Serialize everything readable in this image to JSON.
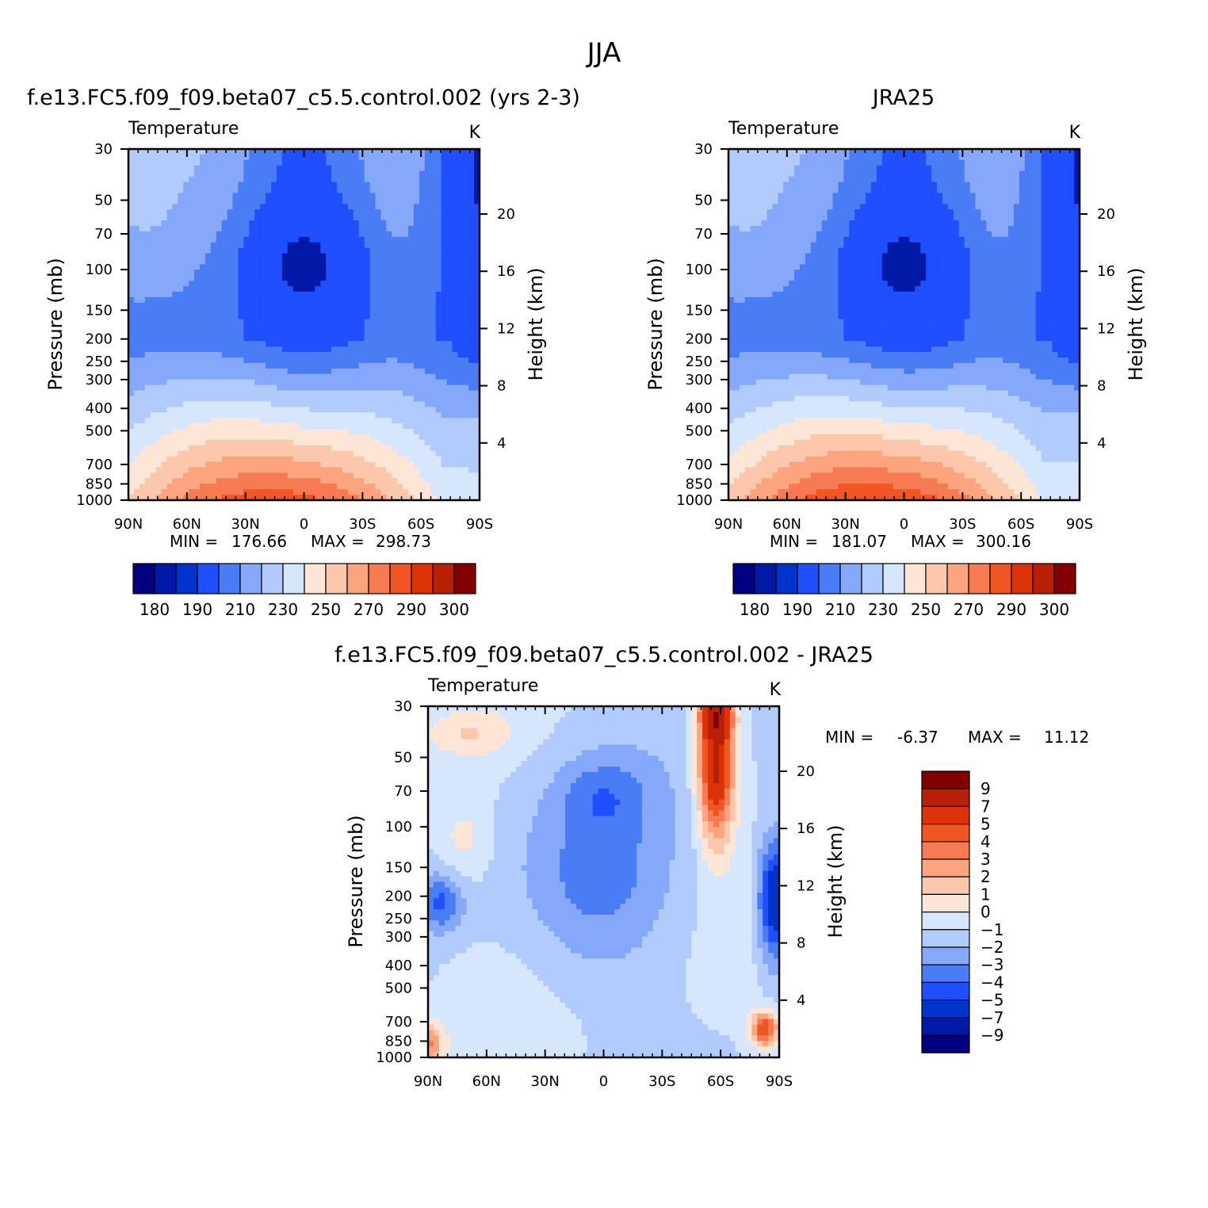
{
  "page_title": "JJA",
  "colors": {
    "abs_scale": [
      "#000080",
      "#0019a6",
      "#0032cc",
      "#1f4fff",
      "#4a7cf5",
      "#85a8fb",
      "#b1cbfd",
      "#d5e6fd",
      "#fee6d6",
      "#fcc7ab",
      "#fba47e",
      "#f77b52",
      "#ef5623",
      "#dd3208",
      "#b82005",
      "#830000"
    ],
    "diff_scale": [
      "#000080",
      "#0019a6",
      "#0032cc",
      "#1f4fff",
      "#4a7cf5",
      "#85a8fb",
      "#b1cbfd",
      "#d5e6fd",
      "#fee6d6",
      "#fcc7ab",
      "#fba47e",
      "#f77b52",
      "#ef5623",
      "#dd3208",
      "#b82005",
      "#830000"
    ]
  },
  "chart_data": [
    {
      "type": "heatmap",
      "panel": "model",
      "title": "f.e13.FC5.f09_f09.beta07_c5.5.control.002 (yrs 2-3)",
      "left_string": "Temperature",
      "right_string": "K",
      "ylabel": "Pressure (mb)",
      "ylabel_right": "Height (km)",
      "x_ticks": [
        "90N",
        "60N",
        "30N",
        "0",
        "30S",
        "60S",
        "90S"
      ],
      "y_ticks": [
        "30",
        "50",
        "70",
        "100",
        "150",
        "200",
        "250",
        "300",
        "400",
        "500",
        "700",
        "850",
        "1000"
      ],
      "y_ticks_right": [
        "20",
        "16",
        "12",
        "8",
        "4"
      ],
      "x_range": [
        90,
        -90
      ],
      "y_range": [
        30,
        1000
      ],
      "y_scale": "log",
      "stats": {
        "min_label": "MIN =",
        "min": "176.66",
        "max_label": "MAX =",
        "max": "298.73"
      },
      "colorbar_labels": [
        "180",
        "190",
        "210",
        "230",
        "250",
        "270",
        "290",
        "300"
      ],
      "levels": [
        180,
        190,
        200,
        210,
        220,
        230,
        240,
        250,
        260,
        270,
        280,
        290,
        300
      ]
    },
    {
      "type": "heatmap",
      "panel": "obs",
      "title": "JRA25",
      "left_string": "Temperature",
      "right_string": "K",
      "ylabel": "Pressure (mb)",
      "ylabel_right": "Height (km)",
      "x_ticks": [
        "90N",
        "60N",
        "30N",
        "0",
        "30S",
        "60S",
        "90S"
      ],
      "y_ticks": [
        "30",
        "50",
        "70",
        "100",
        "150",
        "200",
        "250",
        "300",
        "400",
        "500",
        "700",
        "850",
        "1000"
      ],
      "y_ticks_right": [
        "20",
        "16",
        "12",
        "8",
        "4"
      ],
      "x_range": [
        90,
        -90
      ],
      "y_range": [
        30,
        1000
      ],
      "y_scale": "log",
      "stats": {
        "min_label": "MIN =",
        "min": "181.07",
        "max_label": "MAX =",
        "max": "300.16"
      },
      "colorbar_labels": [
        "180",
        "190",
        "210",
        "230",
        "250",
        "270",
        "290",
        "300"
      ]
    },
    {
      "type": "heatmap",
      "panel": "diff",
      "title": "f.e13.FC5.f09_f09.beta07_c5.5.control.002 - JRA25",
      "left_string": "Temperature",
      "right_string": "K",
      "ylabel": "Pressure (mb)",
      "ylabel_right": "Height (km)",
      "x_ticks": [
        "90N",
        "60N",
        "30N",
        "0",
        "30S",
        "60S",
        "90S"
      ],
      "y_ticks": [
        "30",
        "50",
        "70",
        "100",
        "150",
        "200",
        "250",
        "300",
        "400",
        "500",
        "700",
        "850",
        "1000"
      ],
      "y_ticks_right": [
        "20",
        "16",
        "12",
        "8",
        "4"
      ],
      "x_range": [
        90,
        -90
      ],
      "y_range": [
        30,
        1000
      ],
      "y_scale": "log",
      "stats": {
        "min_label": "MIN =",
        "min": "-6.37",
        "max_label": "MAX =",
        "max": "11.12"
      },
      "colorbar_labels": [
        "9",
        "7",
        "5",
        "4",
        "3",
        "2",
        "1",
        "0",
        "-1",
        "-2",
        "-3",
        "-4",
        "-5",
        "-7",
        "-9"
      ]
    }
  ]
}
